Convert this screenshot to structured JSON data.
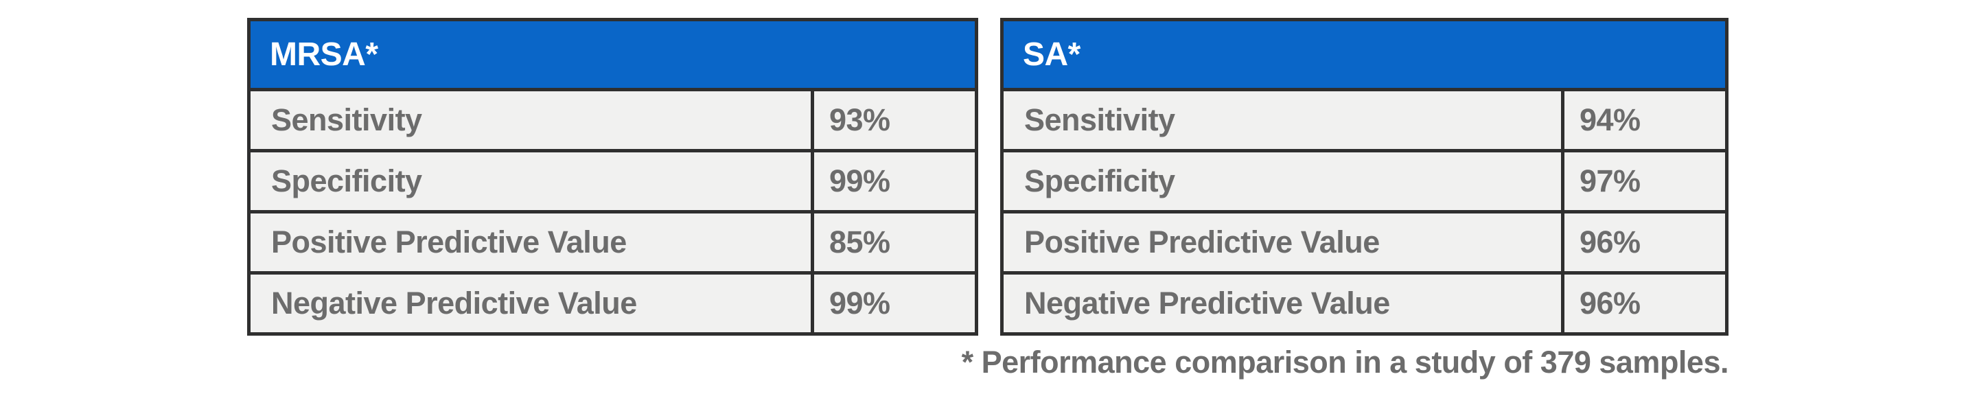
{
  "colors": {
    "header_bg": "#0a66c8",
    "header_text": "#ffffff",
    "border": "#2f2f2f",
    "row_bg": "#f1f1f0",
    "text_gray": "#6c6c6c",
    "page_bg": "#ffffff"
  },
  "tables": [
    {
      "title": "MRSA*",
      "rows": [
        {
          "label": "Sensitivity",
          "value": "93%"
        },
        {
          "label": "Specificity",
          "value": "99%"
        },
        {
          "label": "Positive Predictive Value",
          "value": "85%"
        },
        {
          "label": "Negative Predictive Value",
          "value": "99%"
        }
      ]
    },
    {
      "title": "SA*",
      "rows": [
        {
          "label": "Sensitivity",
          "value": "94%"
        },
        {
          "label": "Specificity",
          "value": "97%"
        },
        {
          "label": "Positive Predictive Value",
          "value": "96%"
        },
        {
          "label": "Negative Predictive Value",
          "value": "96%"
        }
      ]
    }
  ],
  "footnote": "* Performance comparison in a study of 379 samples.",
  "chart_data": {
    "type": "table",
    "tables": [
      {
        "header": "MRSA*",
        "metrics": [
          "Sensitivity",
          "Specificity",
          "Positive Predictive Value",
          "Negative Predictive Value"
        ],
        "values_percent": [
          93,
          99,
          85,
          99
        ]
      },
      {
        "header": "SA*",
        "metrics": [
          "Sensitivity",
          "Specificity",
          "Positive Predictive Value",
          "Negative Predictive Value"
        ],
        "values_percent": [
          94,
          97,
          96,
          96
        ]
      }
    ],
    "footnote": "* Performance comparison in a study of 379 samples.",
    "sample_size": 379,
    "layout": "two side-by-side tables, blue header band, gray rows with dark borders"
  }
}
